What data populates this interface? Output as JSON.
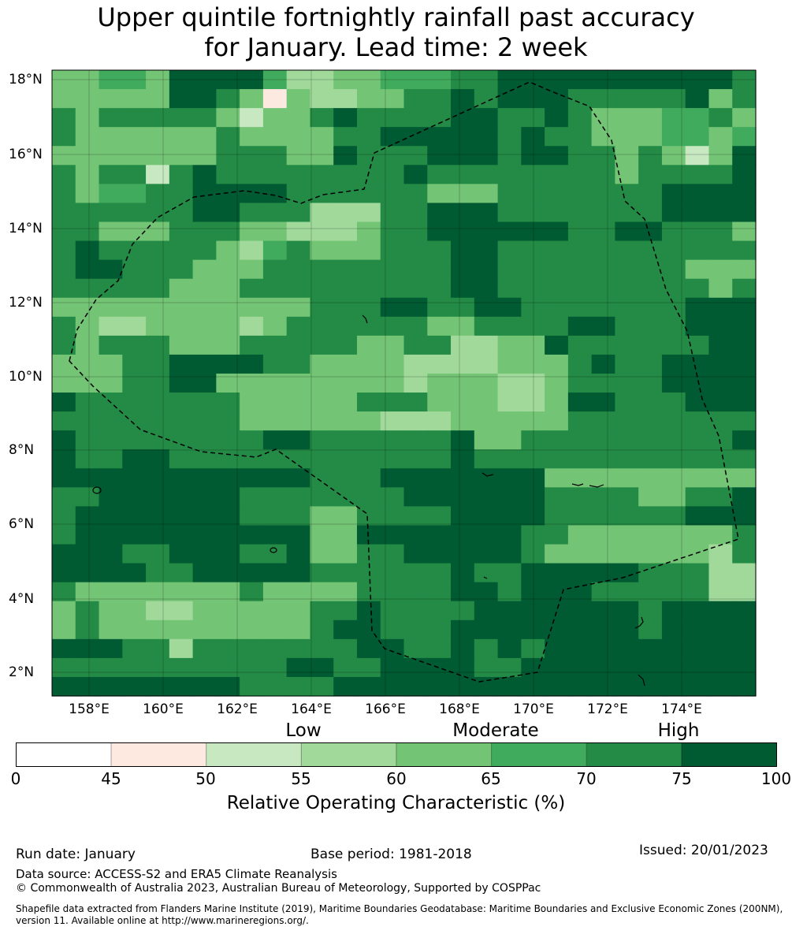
{
  "title": {
    "line1": "Upper quintile fortnightly rainfall past accuracy",
    "line2": "for January. Lead time: 2 week"
  },
  "map": {
    "lat_labels": [
      "18°N",
      "16°N",
      "14°N",
      "12°N",
      "10°N",
      "8°N",
      "6°N",
      "4°N",
      "2°N"
    ],
    "lon_labels": [
      "158°E",
      "160°E",
      "162°E",
      "164°E",
      "166°E",
      "168°E",
      "170°E",
      "172°E",
      "174°E"
    ],
    "grid_values": [
      [
        "62",
        "62",
        "67",
        "67",
        "62",
        "77",
        "77",
        "82",
        "82",
        "67",
        "57",
        "57",
        "62",
        "62",
        "67",
        "67",
        "67",
        "72",
        "72",
        "77",
        "77",
        "77",
        "82",
        "82",
        "82",
        "82",
        "77",
        "77",
        "77",
        "72"
      ],
      [
        "62",
        "62",
        "62",
        "62",
        "62",
        "77",
        "77",
        "72",
        "62",
        "47",
        "62",
        "57",
        "57",
        "62",
        "62",
        "72",
        "72",
        "77",
        "72",
        "77",
        "77",
        "77",
        "72",
        "72",
        "72",
        "72",
        "72",
        "77",
        "62",
        "72"
      ],
      [
        "72",
        "62",
        "72",
        "72",
        "72",
        "72",
        "72",
        "62",
        "52",
        "62",
        "62",
        "72",
        "77",
        "72",
        "72",
        "72",
        "72",
        "77",
        "77",
        "72",
        "72",
        "77",
        "72",
        "62",
        "62",
        "62",
        "67",
        "67",
        "72",
        "62"
      ],
      [
        "72",
        "62",
        "62",
        "62",
        "62",
        "62",
        "62",
        "72",
        "62",
        "62",
        "62",
        "62",
        "72",
        "72",
        "77",
        "77",
        "77",
        "77",
        "77",
        "72",
        "82",
        "72",
        "72",
        "62",
        "62",
        "62",
        "67",
        "67",
        "62",
        "67"
      ],
      [
        "62",
        "62",
        "62",
        "62",
        "62",
        "62",
        "62",
        "72",
        "72",
        "72",
        "62",
        "62",
        "77",
        "72",
        "72",
        "72",
        "77",
        "77",
        "77",
        "72",
        "77",
        "77",
        "72",
        "72",
        "62",
        "72",
        "62",
        "52",
        "62",
        "82"
      ],
      [
        "72",
        "62",
        "72",
        "72",
        "52",
        "72",
        "77",
        "72",
        "72",
        "72",
        "72",
        "72",
        "72",
        "72",
        "72",
        "77",
        "72",
        "72",
        "72",
        "72",
        "72",
        "72",
        "72",
        "72",
        "62",
        "72",
        "72",
        "72",
        "72",
        "77"
      ],
      [
        "72",
        "62",
        "67",
        "67",
        "72",
        "72",
        "77",
        "77",
        "77",
        "77",
        "72",
        "72",
        "72",
        "72",
        "72",
        "72",
        "62",
        "62",
        "62",
        "72",
        "72",
        "72",
        "72",
        "72",
        "72",
        "72",
        "77",
        "77",
        "82",
        "77"
      ],
      [
        "72",
        "72",
        "72",
        "72",
        "72",
        "72",
        "77",
        "77",
        "72",
        "72",
        "72",
        "57",
        "57",
        "57",
        "72",
        "72",
        "77",
        "77",
        "77",
        "72",
        "72",
        "72",
        "72",
        "72",
        "72",
        "72",
        "77",
        "77",
        "77",
        "77"
      ],
      [
        "72",
        "72",
        "62",
        "62",
        "62",
        "72",
        "72",
        "72",
        "62",
        "62",
        "57",
        "57",
        "57",
        "62",
        "72",
        "72",
        "77",
        "77",
        "77",
        "77",
        "77",
        "77",
        "72",
        "72",
        "77",
        "82",
        "72",
        "72",
        "72",
        "62"
      ],
      [
        "72",
        "82",
        "72",
        "72",
        "72",
        "72",
        "72",
        "62",
        "57",
        "67",
        "72",
        "62",
        "62",
        "62",
        "72",
        "72",
        "72",
        "77",
        "77",
        "72",
        "72",
        "72",
        "72",
        "72",
        "72",
        "72",
        "72",
        "72",
        "72",
        "72"
      ],
      [
        "72",
        "77",
        "77",
        "72",
        "72",
        "72",
        "62",
        "62",
        "62",
        "72",
        "72",
        "72",
        "72",
        "72",
        "72",
        "72",
        "72",
        "77",
        "77",
        "72",
        "72",
        "72",
        "72",
        "72",
        "72",
        "72",
        "72",
        "62",
        "62",
        "62"
      ],
      [
        "72",
        "72",
        "72",
        "72",
        "72",
        "62",
        "62",
        "62",
        "72",
        "72",
        "72",
        "72",
        "72",
        "72",
        "72",
        "72",
        "72",
        "77",
        "77",
        "72",
        "72",
        "72",
        "72",
        "72",
        "72",
        "72",
        "72",
        "72",
        "62",
        "72"
      ],
      [
        "62",
        "62",
        "62",
        "62",
        "62",
        "62",
        "62",
        "62",
        "62",
        "62",
        "62",
        "72",
        "72",
        "72",
        "77",
        "77",
        "72",
        "72",
        "77",
        "77",
        "72",
        "72",
        "72",
        "72",
        "72",
        "72",
        "72",
        "77",
        "77",
        "82"
      ],
      [
        "72",
        "62",
        "57",
        "57",
        "62",
        "62",
        "62",
        "62",
        "57",
        "62",
        "72",
        "72",
        "72",
        "72",
        "72",
        "72",
        "62",
        "62",
        "72",
        "72",
        "72",
        "72",
        "77",
        "77",
        "72",
        "72",
        "72",
        "77",
        "77",
        "82"
      ],
      [
        "72",
        "62",
        "72",
        "72",
        "72",
        "62",
        "62",
        "62",
        "72",
        "72",
        "72",
        "72",
        "72",
        "62",
        "62",
        "72",
        "72",
        "57",
        "57",
        "62",
        "62",
        "77",
        "72",
        "72",
        "72",
        "72",
        "72",
        "72",
        "82",
        "82"
      ],
      [
        "62",
        "62",
        "62",
        "72",
        "72",
        "82",
        "82",
        "82",
        "82",
        "72",
        "72",
        "62",
        "62",
        "62",
        "62",
        "57",
        "57",
        "57",
        "57",
        "62",
        "62",
        "62",
        "72",
        "77",
        "72",
        "72",
        "82",
        "82",
        "82",
        "82"
      ],
      [
        "62",
        "62",
        "62",
        "72",
        "72",
        "82",
        "82",
        "62",
        "62",
        "62",
        "62",
        "62",
        "62",
        "62",
        "62",
        "57",
        "62",
        "62",
        "62",
        "57",
        "57",
        "62",
        "72",
        "72",
        "72",
        "72",
        "82",
        "82",
        "82",
        "82"
      ],
      [
        "82",
        "72",
        "72",
        "72",
        "72",
        "72",
        "72",
        "72",
        "62",
        "62",
        "62",
        "62",
        "62",
        "72",
        "72",
        "72",
        "62",
        "62",
        "62",
        "57",
        "57",
        "62",
        "77",
        "77",
        "72",
        "72",
        "72",
        "82",
        "82",
        "82"
      ],
      [
        "72",
        "72",
        "72",
        "72",
        "72",
        "72",
        "72",
        "72",
        "62",
        "62",
        "62",
        "62",
        "62",
        "62",
        "57",
        "57",
        "57",
        "62",
        "62",
        "62",
        "62",
        "62",
        "72",
        "72",
        "72",
        "72",
        "72",
        "72",
        "72",
        "72"
      ],
      [
        "82",
        "72",
        "72",
        "72",
        "72",
        "72",
        "72",
        "72",
        "72",
        "82",
        "82",
        "72",
        "72",
        "72",
        "72",
        "72",
        "72",
        "77",
        "62",
        "62",
        "72",
        "72",
        "72",
        "72",
        "72",
        "72",
        "72",
        "72",
        "72",
        "77"
      ],
      [
        "77",
        "72",
        "72",
        "82",
        "77",
        "72",
        "72",
        "72",
        "72",
        "72",
        "72",
        "72",
        "72",
        "72",
        "72",
        "72",
        "72",
        "82",
        "72",
        "72",
        "72",
        "72",
        "72",
        "72",
        "72",
        "72",
        "72",
        "72",
        "72",
        "72"
      ],
      [
        "77",
        "77",
        "77",
        "82",
        "77",
        "77",
        "77",
        "77",
        "77",
        "77",
        "77",
        "72",
        "72",
        "72",
        "77",
        "82",
        "82",
        "82",
        "82",
        "82",
        "77",
        "62",
        "62",
        "62",
        "62",
        "62",
        "62",
        "62",
        "62",
        "62"
      ],
      [
        "72",
        "72",
        "77",
        "77",
        "82",
        "77",
        "77",
        "77",
        "72",
        "72",
        "72",
        "72",
        "72",
        "72",
        "72",
        "77",
        "77",
        "82",
        "82",
        "82",
        "77",
        "72",
        "72",
        "72",
        "72",
        "62",
        "62",
        "72",
        "72",
        "77"
      ],
      [
        "72",
        "82",
        "82",
        "82",
        "82",
        "82",
        "82",
        "82",
        "72",
        "72",
        "72",
        "62",
        "62",
        "72",
        "72",
        "72",
        "72",
        "82",
        "82",
        "82",
        "82",
        "72",
        "72",
        "72",
        "72",
        "72",
        "72",
        "77",
        "77",
        "77"
      ],
      [
        "72",
        "82",
        "82",
        "82",
        "82",
        "82",
        "82",
        "82",
        "77",
        "77",
        "77",
        "62",
        "62",
        "77",
        "77",
        "77",
        "77",
        "77",
        "77",
        "77",
        "72",
        "72",
        "62",
        "62",
        "62",
        "62",
        "62",
        "62",
        "62",
        "72"
      ],
      [
        "82",
        "82",
        "82",
        "72",
        "72",
        "77",
        "77",
        "77",
        "72",
        "72",
        "82",
        "62",
        "62",
        "72",
        "72",
        "77",
        "77",
        "77",
        "77",
        "77",
        "72",
        "62",
        "62",
        "62",
        "62",
        "62",
        "62",
        "62",
        "57",
        "72"
      ],
      [
        "82",
        "82",
        "77",
        "77",
        "72",
        "72",
        "77",
        "77",
        "77",
        "77",
        "77",
        "72",
        "72",
        "72",
        "72",
        "72",
        "72",
        "77",
        "72",
        "72",
        "82",
        "82",
        "82",
        "82",
        "77",
        "72",
        "72",
        "72",
        "57",
        "57"
      ],
      [
        "72",
        "62",
        "62",
        "62",
        "62",
        "62",
        "62",
        "62",
        "72",
        "62",
        "62",
        "62",
        "62",
        "72",
        "72",
        "72",
        "72",
        "77",
        "77",
        "72",
        "77",
        "77",
        "77",
        "72",
        "72",
        "72",
        "72",
        "72",
        "57",
        "57"
      ],
      [
        "62",
        "72",
        "62",
        "62",
        "57",
        "57",
        "62",
        "62",
        "62",
        "62",
        "62",
        "72",
        "72",
        "77",
        "72",
        "72",
        "72",
        "72",
        "82",
        "82",
        "82",
        "82",
        "82",
        "82",
        "82",
        "72",
        "82",
        "82",
        "82",
        "82"
      ],
      [
        "62",
        "72",
        "62",
        "62",
        "62",
        "62",
        "62",
        "62",
        "62",
        "62",
        "62",
        "72",
        "77",
        "77",
        "72",
        "72",
        "72",
        "82",
        "82",
        "82",
        "82",
        "82",
        "82",
        "82",
        "82",
        "72",
        "82",
        "82",
        "82",
        "82"
      ],
      [
        "77",
        "77",
        "77",
        "72",
        "72",
        "57",
        "72",
        "72",
        "72",
        "72",
        "72",
        "72",
        "72",
        "77",
        "77",
        "72",
        "72",
        "82",
        "72",
        "77",
        "72",
        "82",
        "82",
        "82",
        "82",
        "82",
        "82",
        "82",
        "82",
        "82"
      ],
      [
        "72",
        "72",
        "72",
        "72",
        "72",
        "72",
        "72",
        "72",
        "72",
        "72",
        "77",
        "77",
        "72",
        "72",
        "77",
        "77",
        "77",
        "82",
        "72",
        "72",
        "82",
        "82",
        "82",
        "82",
        "82",
        "82",
        "82",
        "82",
        "82",
        "82"
      ],
      [
        "82",
        "82",
        "82",
        "82",
        "82",
        "82",
        "82",
        "82",
        "72",
        "72",
        "72",
        "72",
        "77",
        "77",
        "77",
        "77",
        "77",
        "82",
        "82",
        "82",
        "82",
        "82",
        "82",
        "82",
        "82",
        "82",
        "82",
        "82",
        "82",
        "82"
      ]
    ]
  },
  "categories": {
    "low": "Low",
    "moderate": "Moderate",
    "high": "High"
  },
  "colorbar": {
    "ticks": [
      "0",
      "45",
      "50",
      "55",
      "60",
      "65",
      "70",
      "75",
      "100"
    ],
    "colors": [
      "#ffffff",
      "#fee9e1",
      "#c7e8c1",
      "#a1d99b",
      "#74c476",
      "#41ab5d",
      "#238b45",
      "#005a32"
    ],
    "label": "Relative Operating Characteristic (%)"
  },
  "footer": {
    "run_date": "Run date: January",
    "base_period": "Base period: 1981-2018",
    "issued": "Issued: 20/01/2023",
    "data_source": "Data source: ACCESS-S2 and ERA5 Climate Reanalysis",
    "copyright": "© Commonwealth of Australia 2023, Australian Bureau of Meteorology, Supported by COSPPac",
    "shapefile": "Shapefile data extracted from Flanders Marine Institute (2019), Maritime Boundaries Geodatabase: Maritime Boundaries and Exclusive Economic Zones (200NM), version 11. Available online at http://www.marineregions.org/."
  }
}
